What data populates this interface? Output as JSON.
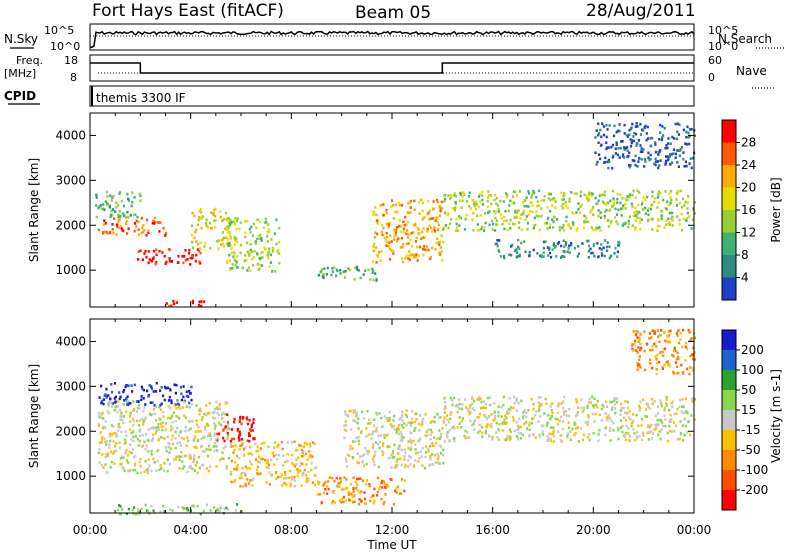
{
  "header": {
    "station": "Fort Hays East (fitACF)",
    "beam": "Beam 05",
    "date": "28/Aug/2011"
  },
  "top_panels": {
    "nsky_label": "N.Sky",
    "nsearch_label": "N.Search",
    "freq_label": "Freq.",
    "freq_unit": "[MHz]",
    "nave_label": "Nave",
    "cpid_label": "CPID",
    "cpid_value": "themis 3300 IF",
    "noise_ticks_left": [
      "10^5",
      "10^0"
    ],
    "noise_ticks_right": [
      "10^5",
      "10^0"
    ],
    "freq_ticks": [
      "18",
      "8"
    ],
    "nave_ticks": [
      "60",
      "0"
    ]
  },
  "axes": {
    "ylabel": "Slant Range [km]",
    "y_ticks": [
      "4000",
      "3000",
      "2000",
      "1000"
    ],
    "x_ticks": [
      "00:00",
      "04:00",
      "08:00",
      "12:00",
      "16:00",
      "20:00",
      "00:00"
    ],
    "xlabel": "Time UT"
  },
  "power_scale": {
    "label": "Power [dB]",
    "ticks": [
      "28",
      "24",
      "20",
      "16",
      "12",
      "8",
      "4"
    ],
    "colors": [
      "#ff0000",
      "#ff5a00",
      "#ffaa00",
      "#e6dc00",
      "#9acd32",
      "#3cb371",
      "#2e8b7f",
      "#1f3fc8"
    ]
  },
  "velocity_scale": {
    "label": "Velocity [m s-1]",
    "ticks": [
      "200",
      "100",
      "50",
      "15",
      "-15",
      "-50",
      "-100",
      "-200"
    ],
    "colors": [
      "#1a1acd",
      "#1e64c8",
      "#2ca02c",
      "#88d64a",
      "#c8c8c8",
      "#ffc000",
      "#ff8c00",
      "#ff5000",
      "#ff0000"
    ]
  },
  "chart_data": [
    {
      "type": "heatmap",
      "name": "power",
      "x_range_hours": [
        0,
        24
      ],
      "ylim": [
        180,
        4500
      ],
      "blobs": [
        {
          "t0": 0.2,
          "t1": 2.0,
          "r0": 2200,
          "r1": 2800,
          "level": 5
        },
        {
          "t0": 0.3,
          "t1": 3.0,
          "r0": 1800,
          "r1": 2200,
          "level": 1
        },
        {
          "t0": 1.8,
          "t1": 4.5,
          "r0": 1150,
          "r1": 1500,
          "level": 0
        },
        {
          "t0": 4.0,
          "t1": 5.6,
          "r0": 1500,
          "r1": 2400,
          "level": 3
        },
        {
          "t0": 5.4,
          "t1": 7.5,
          "r0": 1000,
          "r1": 2200,
          "level": 4
        },
        {
          "t0": 9.0,
          "t1": 11.5,
          "r0": 800,
          "r1": 1100,
          "level": 5
        },
        {
          "t0": 11.2,
          "t1": 14.0,
          "r0": 1200,
          "r1": 2600,
          "level": 2
        },
        {
          "t0": 14.0,
          "t1": 24.0,
          "r0": 1900,
          "r1": 2800,
          "level": 4
        },
        {
          "t0": 16.0,
          "t1": 21.0,
          "r0": 1300,
          "r1": 1700,
          "level": 6
        },
        {
          "t0": 20.0,
          "t1": 24.0,
          "r0": 3300,
          "r1": 4300,
          "level": 7
        },
        {
          "t0": 3.0,
          "t1": 4.5,
          "r0": 200,
          "r1": 350,
          "level": 0
        }
      ]
    },
    {
      "type": "heatmap",
      "name": "velocity",
      "x_range_hours": [
        0,
        24
      ],
      "ylim": [
        180,
        4500
      ],
      "blobs": [
        {
          "t0": 0.3,
          "t1": 4.0,
          "r0": 2600,
          "r1": 3100,
          "level": 0
        },
        {
          "t0": 0.3,
          "t1": 5.5,
          "r0": 1100,
          "r1": 2700,
          "level": 4
        },
        {
          "t0": 5.0,
          "t1": 6.5,
          "r0": 1800,
          "r1": 2400,
          "level": 8
        },
        {
          "t0": 5.5,
          "t1": 9.0,
          "r0": 800,
          "r1": 1800,
          "level": 5
        },
        {
          "t0": 9.0,
          "t1": 12.5,
          "r0": 400,
          "r1": 1000,
          "level": 6
        },
        {
          "t0": 10.0,
          "t1": 14.0,
          "r0": 1200,
          "r1": 2500,
          "level": 4
        },
        {
          "t0": 14.0,
          "t1": 24.0,
          "r0": 1800,
          "r1": 2800,
          "level": 4
        },
        {
          "t0": 21.5,
          "t1": 24.0,
          "r0": 3300,
          "r1": 4300,
          "level": 6
        },
        {
          "t0": 1.0,
          "t1": 6.0,
          "r0": 180,
          "r1": 400,
          "level": 3
        }
      ]
    }
  ]
}
